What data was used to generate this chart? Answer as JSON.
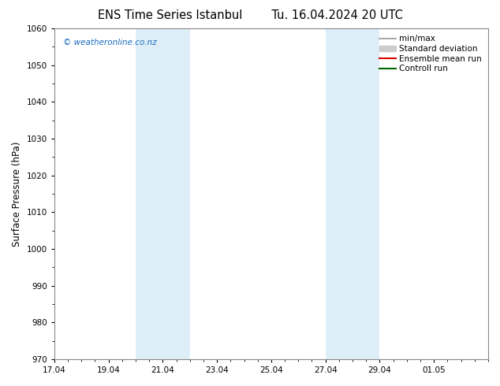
{
  "title_left": "ENS Time Series Istanbul",
  "title_right": "Tu. 16.04.2024 20 UTC",
  "ylabel": "Surface Pressure (hPa)",
  "ylim": [
    970,
    1060
  ],
  "yticks": [
    970,
    980,
    990,
    1000,
    1010,
    1020,
    1030,
    1040,
    1050,
    1060
  ],
  "xtick_labels": [
    "17.04",
    "19.04",
    "21.04",
    "23.04",
    "25.04",
    "27.04",
    "29.04",
    "01.05"
  ],
  "xtick_positions": [
    0,
    2,
    4,
    6,
    8,
    10,
    12,
    14
  ],
  "xlim": [
    0,
    16
  ],
  "shaded_bands": [
    {
      "x_start": 3.0,
      "x_end": 5.0
    },
    {
      "x_start": 10.0,
      "x_end": 12.0
    }
  ],
  "shaded_color": "#ddeef8",
  "watermark": "© weatheronline.co.nz",
  "watermark_color": "#1a6bc0",
  "legend_entries": [
    {
      "label": "min/max",
      "color": "#999999",
      "lw": 1.2,
      "type": "line_with_caps"
    },
    {
      "label": "Standard deviation",
      "color": "#cccccc",
      "lw": 7,
      "type": "thick"
    },
    {
      "label": "Ensemble mean run",
      "color": "#dd0000",
      "lw": 1.5,
      "type": "line"
    },
    {
      "label": "Controll run",
      "color": "#006600",
      "lw": 1.5,
      "type": "line"
    }
  ],
  "bg_color": "#ffffff",
  "plot_bg_color": "#ffffff",
  "spine_color": "#888888",
  "tick_label_fontsize": 7.5,
  "ylabel_fontsize": 8.5,
  "title_fontsize": 10.5,
  "legend_fontsize": 7.5,
  "minor_tick_every": 0.5
}
